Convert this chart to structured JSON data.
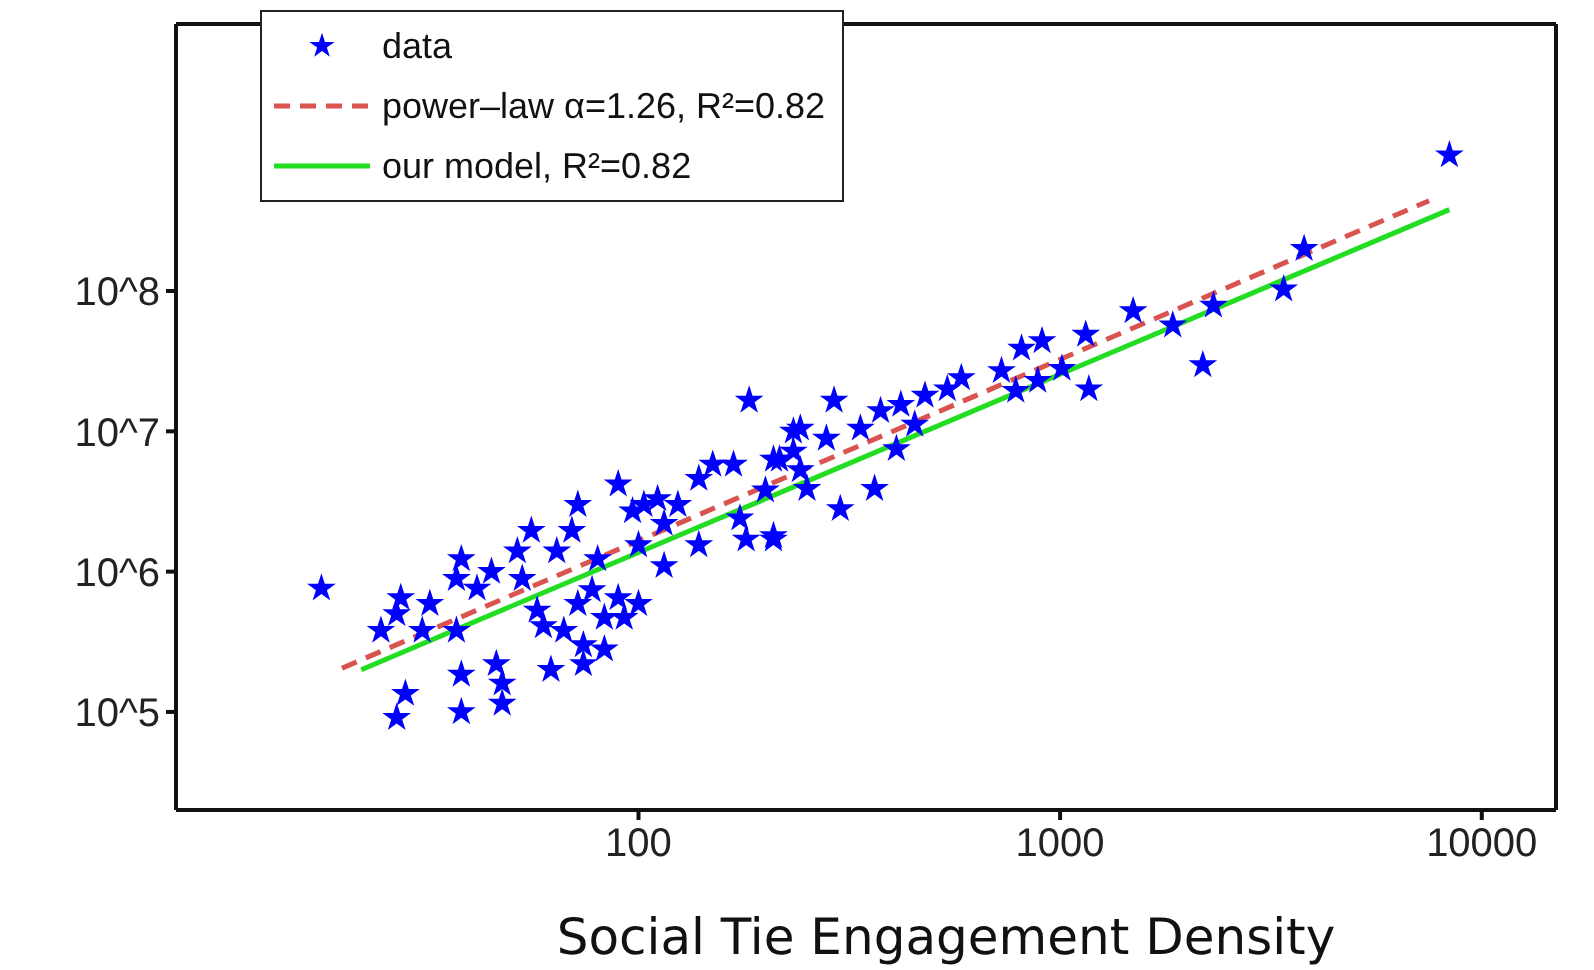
{
  "chart_data": {
    "type": "scatter",
    "xlabel": "Social Tie Engagement Density",
    "log": "xy",
    "grid": false,
    "legend": "top",
    "xlim": [
      8,
      15000
    ],
    "ylim": [
      20000,
      8000000000
    ],
    "xticks": [
      100,
      1000,
      10000
    ],
    "yticks": [
      {
        "value": 100000,
        "label": "10^5"
      },
      {
        "value": 1000000,
        "label": "10^6"
      },
      {
        "value": 10000000,
        "label": "10^7"
      },
      {
        "value": 100000000,
        "label": "10^8"
      }
    ],
    "series": [
      {
        "name": "data",
        "type": "scatter",
        "marker": "star",
        "color": "#0000ff",
        "x": [
          17.7,
          26.7,
          28,
          24.5,
          26.7,
          27.3,
          32,
          30.7,
          37,
          38,
          38,
          37,
          38,
          41.4,
          44.8,
          46,
          47.5,
          47.5,
          51.6,
          53,
          55.7,
          57.5,
          59.5,
          62,
          64,
          66.5,
          69.5,
          71.8,
          71.8,
          74,
          74,
          77.6,
          80,
          83,
          83,
          89.5,
          89.5,
          92.5,
          96.8,
          100,
          100,
          103,
          111,
          115,
          115,
          124,
          139,
          139,
          150,
          168,
          174,
          180,
          183,
          200,
          209,
          216,
          233,
          8380,
          3790,
          3390,
          2310,
          2180,
          1850,
          1490,
          1150,
          1170,
          1010,
          906,
          810,
          885,
          785,
          726,
          583,
          540,
          478,
          419,
          409,
          363,
          301,
          209,
          291,
          375,
          336,
          279,
          242,
          233,
          209,
          242,
          452,
          251
        ],
        "values": [
          760000,
          91000,
          135000,
          380000,
          500000,
          650000,
          590000,
          380000,
          380000,
          185000,
          100000,
          890000,
          1230000,
          760000,
          1000000,
          220000,
          160000,
          115000,
          1400000,
          890000,
          1960000,
          530000,
          410000,
          200000,
          1400000,
          380000,
          1960000,
          3000000,
          590000,
          300000,
          220000,
          740000,
          1230000,
          470000,
          280000,
          4200000,
          650000,
          470000,
          2700000,
          1550000,
          590000,
          3000000,
          3300000,
          2200000,
          1100000,
          3000000,
          4600000,
          1550000,
          5800000,
          5800000,
          2400000,
          1700000,
          16600000,
          3800000,
          1700000,
          6300000,
          10000000,
          930000000,
          200000000,
          103000000,
          79000000,
          29700000,
          57000000,
          72000000,
          49000000,
          20000000,
          28000000,
          44000000,
          39000000,
          23000000,
          19500000,
          27000000,
          24000000,
          20000000,
          18000000,
          15500000,
          7500000,
          3900000,
          2800000,
          1800000,
          16600000,
          14000000,
          10500000,
          8900000,
          10500000,
          7200000,
          6300000,
          5300000,
          11200000,
          3900000
        ]
      },
      {
        "name": "power–law α=1.26, R²=0.82",
        "type": "line",
        "marker": "none",
        "line_style": "dashed",
        "color": "#d9534f",
        "x": [
          19.8,
          7500
        ],
        "values": [
          205000,
          440000000
        ]
      },
      {
        "name": "our model, R²=0.82",
        "type": "line",
        "marker": "none",
        "line_style": "solid",
        "color": "#22dd22",
        "x": [
          22,
          8380
        ],
        "values": [
          200000,
          380000000
        ]
      }
    ]
  }
}
